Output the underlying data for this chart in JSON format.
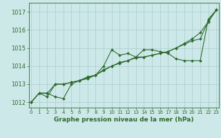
{
  "background_color": "#cde8e8",
  "grid_color": "#aacccc",
  "line_color": "#2d6a2d",
  "title": "Graphe pression niveau de la mer (hPa)",
  "x": [
    0,
    1,
    2,
    3,
    4,
    5,
    6,
    7,
    8,
    9,
    10,
    11,
    12,
    13,
    14,
    15,
    16,
    17,
    18,
    19,
    20,
    21,
    22,
    23
  ],
  "xlim": [
    -0.3,
    23.3
  ],
  "ylim": [
    1011.7,
    1017.5
  ],
  "yticks": [
    1012,
    1013,
    1014,
    1015,
    1016,
    1017
  ],
  "series": [
    [
      1012.0,
      1012.5,
      1012.5,
      1012.3,
      1012.2,
      1013.0,
      1013.2,
      1013.4,
      1013.5,
      1014.0,
      1014.9,
      1014.6,
      1014.7,
      1014.5,
      1014.9,
      1014.9,
      1014.8,
      1014.7,
      1014.4,
      1014.3,
      1014.3,
      1014.3,
      1016.6,
      1017.1
    ],
    [
      1012.0,
      1012.5,
      1012.5,
      1013.0,
      1013.0,
      1013.1,
      1013.2,
      1013.3,
      1013.5,
      1013.8,
      1014.0,
      1014.2,
      1014.3,
      1014.5,
      1014.5,
      1014.6,
      1014.7,
      1014.8,
      1015.0,
      1015.2,
      1015.4,
      1015.5,
      1016.5,
      1017.1
    ],
    [
      1012.0,
      1012.5,
      1012.3,
      1013.0,
      1013.0,
      1013.1,
      1013.2,
      1013.35,
      1013.5,
      1013.75,
      1014.0,
      1014.15,
      1014.3,
      1014.45,
      1014.5,
      1014.6,
      1014.7,
      1014.8,
      1015.0,
      1015.25,
      1015.5,
      1015.85,
      1016.45,
      1017.1
    ]
  ],
  "ytick_fontsize": 6,
  "xtick_fontsize": 5,
  "title_fontsize": 6.5,
  "linewidth": 0.8,
  "markersize": 2.0
}
